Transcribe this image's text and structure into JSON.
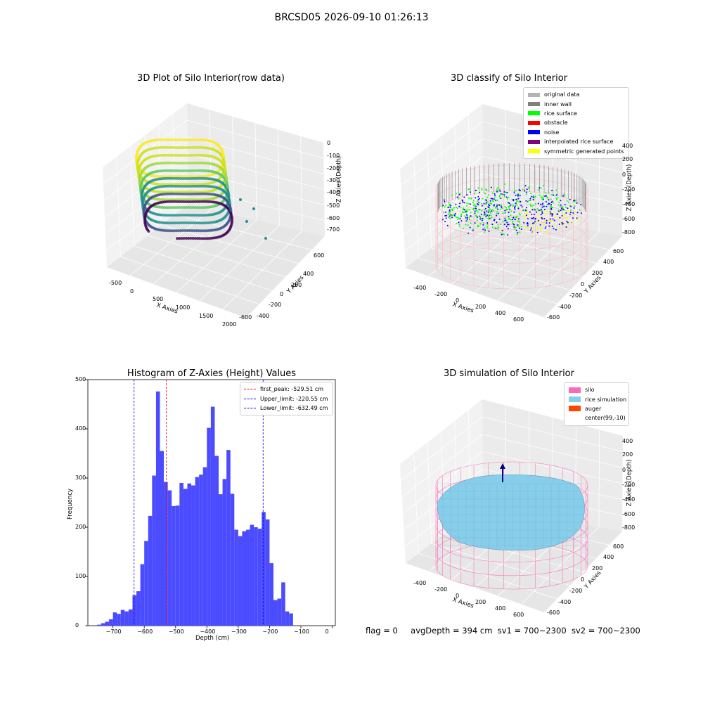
{
  "suptitle": "BRCSD05 2026-09-10 01:26:13",
  "panels": {
    "raw": {
      "title": "3D Plot of Silo Interior(row data)",
      "xlabel": "X Axies",
      "ylabel": "Y Axies",
      "zlabel": "Z Axies (Depth)",
      "xticks": [
        "-500",
        "0",
        "500",
        "1000",
        "1500",
        "2000"
      ],
      "yticks": [
        "600",
        "400",
        "200",
        "0",
        "-200",
        "-400",
        "-600"
      ],
      "zticks": [
        "0",
        "-100",
        "-200",
        "-300",
        "-400",
        "-500",
        "-600",
        "-700"
      ]
    },
    "classify": {
      "title": "3D classify of Silo Interior",
      "xlabel": "X Axies",
      "ylabel": "Y Axies",
      "zlabel": "Z Axies (Depth)",
      "xticks": [
        "-400",
        "-200",
        "0",
        "200",
        "400",
        "600"
      ],
      "yticks": [
        "600",
        "400",
        "200",
        "0",
        "-200",
        "-400",
        "-600"
      ],
      "zticks": [
        "400",
        "200",
        "0",
        "-200",
        "-400",
        "-600",
        "-800"
      ],
      "legend": [
        {
          "label": "original data",
          "color": "#b3b3b3"
        },
        {
          "label": "inner wall",
          "color": "#808080"
        },
        {
          "label": "rice surface",
          "color": "#00ff00"
        },
        {
          "label": "obstacle",
          "color": "#ff0000"
        },
        {
          "label": "noise",
          "color": "#0000ff"
        },
        {
          "label": "interpolated rice surface",
          "color": "#800080"
        },
        {
          "label": "symmetric generated points",
          "color": "#ffff00"
        }
      ]
    },
    "simulation": {
      "title": "3D simulation of Silo Interior",
      "xlabel": "X Axies",
      "ylabel": "Y Axies",
      "zlabel": "Z Axies (Depth)",
      "xticks": [
        "-400",
        "-200",
        "0",
        "200",
        "400",
        "600"
      ],
      "yticks": [
        "600",
        "400",
        "200",
        "0",
        "-200",
        "-400",
        "-600"
      ],
      "zticks": [
        "400",
        "200",
        "0",
        "-200",
        "-400",
        "-600",
        "-800"
      ],
      "legend": [
        {
          "label": "silo",
          "color": "#ff69b4"
        },
        {
          "label": "rice simulation",
          "color": "#87ceeb"
        },
        {
          "label": "auger",
          "color": "#ff4500"
        },
        {
          "label": "center(99,-10)",
          "color": "#ffffff"
        }
      ]
    }
  },
  "chart_data": {
    "type": "bar",
    "title": "Histogram of Z-Axies (Height) Values",
    "xlabel": "Depth (cm)",
    "ylabel": "Frequency",
    "xlim": [
      -780,
      10
    ],
    "ylim": [
      0,
      500
    ],
    "xticks": [
      -700,
      -600,
      -500,
      -400,
      -300,
      -200,
      -100,
      0
    ],
    "yticks": [
      0,
      100,
      200,
      300,
      400,
      500
    ],
    "bin_width": 12.5,
    "bin_start": -750,
    "values": [
      2,
      5,
      8,
      13,
      27,
      24,
      32,
      29,
      33,
      62,
      70,
      125,
      172,
      223,
      305,
      476,
      355,
      292,
      275,
      243,
      244,
      290,
      278,
      289,
      285,
      302,
      307,
      322,
      402,
      445,
      345,
      267,
      298,
      357,
      268,
      195,
      182,
      192,
      195,
      205,
      200,
      197,
      231,
      216,
      127,
      52,
      55,
      88,
      29,
      25
    ],
    "lines": [
      {
        "label": "first_peak: -529.51 cm",
        "value": -529.51,
        "color": "#ff0000"
      },
      {
        "label": "Upper_limit: -220.55 cm",
        "value": -220.55,
        "color": "#0000ff"
      },
      {
        "label": "Lower_limit: -632.49 cm",
        "value": -632.49,
        "color": "#0000ff"
      }
    ],
    "bar_color": "#4b4bff"
  },
  "footer": {
    "flag": "flag = 0",
    "avg": "avgDepth = 394 cm",
    "sv1": "sv1 = 700~2300",
    "sv2": "sv2 = 700~2300"
  }
}
